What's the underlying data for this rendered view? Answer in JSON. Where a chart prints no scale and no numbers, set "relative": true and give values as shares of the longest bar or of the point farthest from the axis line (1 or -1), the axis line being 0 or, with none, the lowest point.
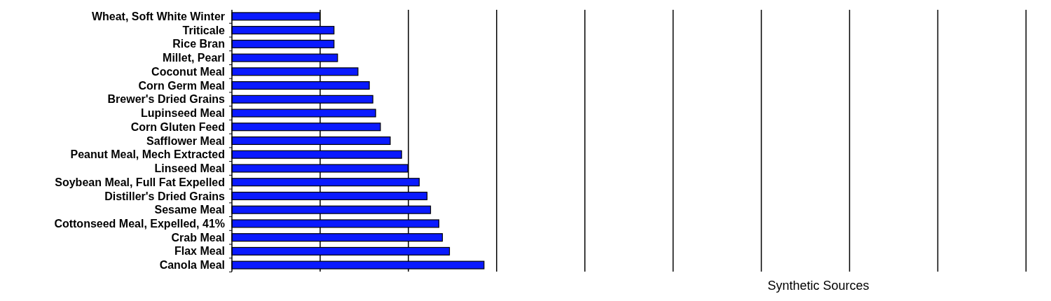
{
  "chart_data": {
    "type": "bar",
    "orientation": "horizontal",
    "relative": true,
    "categories": [
      "Wheat, Soft White Winter",
      "Triticale",
      "Rice Bran",
      "Millet, Pearl",
      "Coconut Meal",
      "Corn Germ Meal",
      "Brewer's Dried Grains",
      "Lupinseed Meal",
      "Corn Gluten Feed",
      "Safflower Meal",
      "Peanut Meal, Mech Extracted",
      "Linseed Meal",
      "Soybean Meal, Full Fat Expelled",
      "Distiller's Dried Grains",
      "Sesame Meal",
      "Cottonseed Meal, Expelled, 41%",
      "Crab Meal",
      "Flax Meal",
      "Canola Meal"
    ],
    "values": [
      0.349,
      0.405,
      0.405,
      0.419,
      0.5,
      0.545,
      0.559,
      0.57,
      0.589,
      0.628,
      0.673,
      0.698,
      0.743,
      0.774,
      0.788,
      0.821,
      0.835,
      0.863,
      1
    ],
    "color": "#0a1aff",
    "ref_lines": [
      {
        "axis": "x",
        "value": 0.35
      },
      {
        "axis": "x",
        "value": 0.7
      },
      {
        "axis": "x",
        "value": 1.05
      },
      {
        "axis": "x",
        "value": 1.4
      },
      {
        "axis": "x",
        "value": 1.75
      },
      {
        "axis": "x",
        "value": 2.1
      },
      {
        "axis": "x",
        "value": 2.45
      },
      {
        "axis": "x",
        "value": 2.8
      },
      {
        "axis": "x",
        "value": 3.15
      }
    ],
    "annotations": [
      "Synthetic Sources"
    ]
  }
}
